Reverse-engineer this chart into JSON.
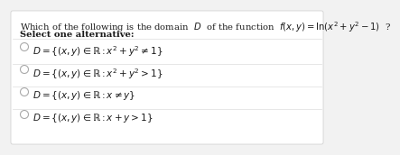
{
  "background_color": "#f2f2f2",
  "white_box_color": "#ffffff",
  "title_line1": "Which of the following is the domain  $D$  of the function  $f(x, y) = \\ln(x^2 + y^2 - 1)$  ?",
  "title_line2": "Select one alternative:",
  "options": [
    "$D = \\{(x, y) \\in \\mathbb{R} : x^2 + y^2 \\neq 1\\}$",
    "$D = \\{(x, y) \\in \\mathbb{R} : x^2 + y^2 > 1\\}$",
    "$D = \\{(x, y) \\in \\mathbb{R} : x \\neq y\\}$",
    "$D = \\{(x, y) \\in \\mathbb{R} : x + y > 1\\}$"
  ],
  "radio_color": "#aaaaaa",
  "text_color": "#1a1a1a",
  "font_size_title": 7.2,
  "font_size_bold": 7.2,
  "font_size_options": 7.5
}
